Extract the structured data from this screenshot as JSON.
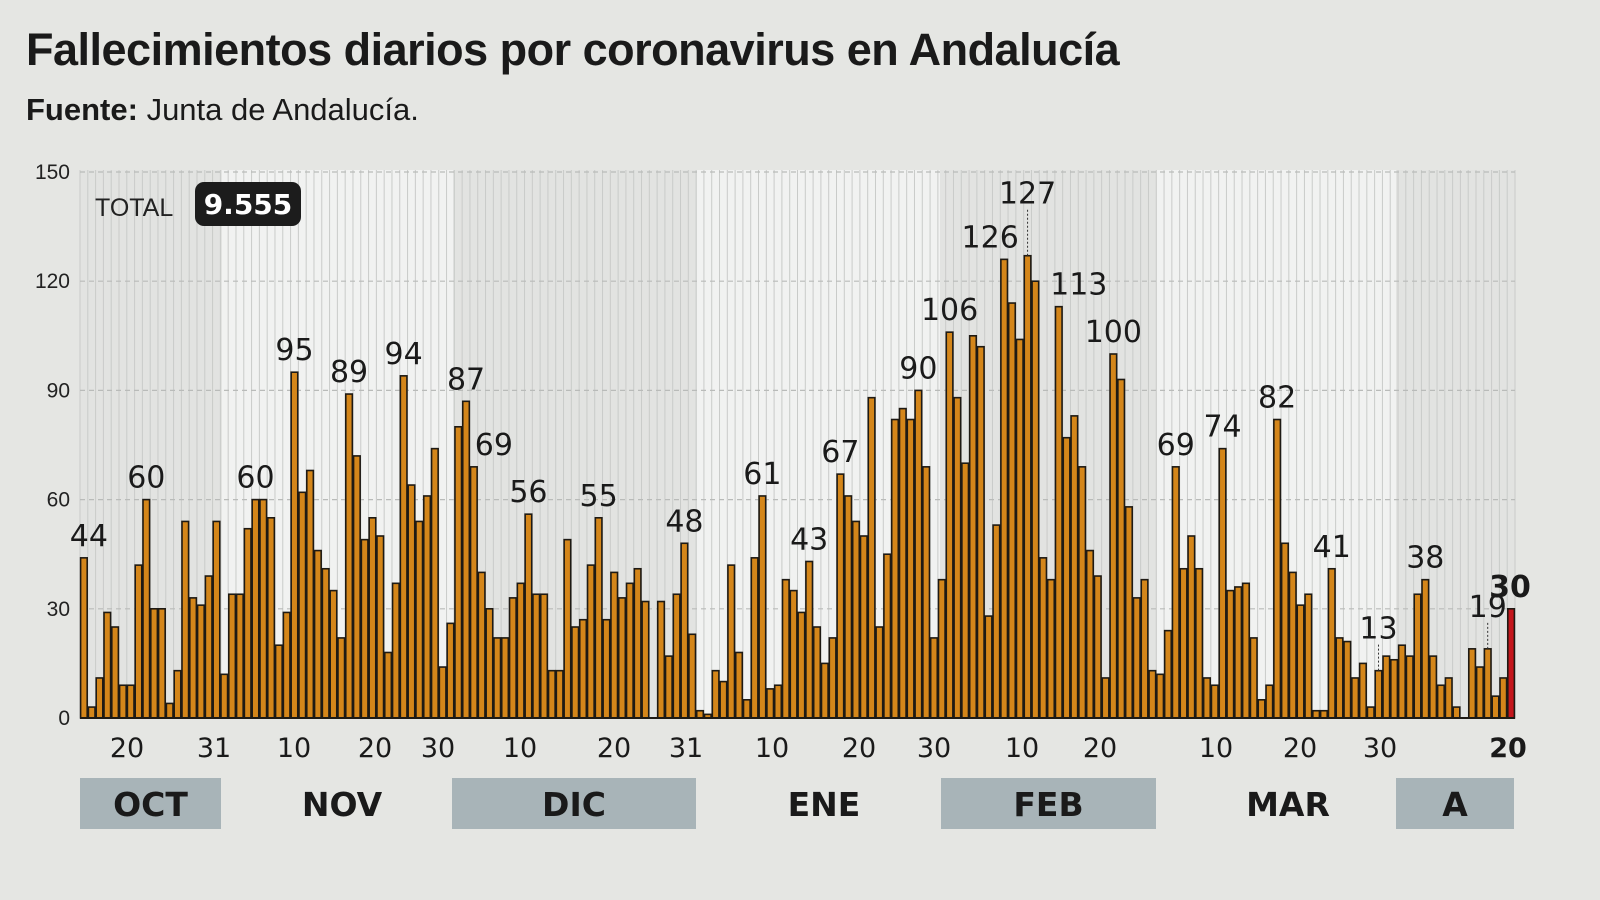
{
  "title": "Fallecimientos diarios por coronavirus en Andalucía",
  "source_label": "Fuente:",
  "source_text": "Junta de Andalucía.",
  "total_label": "TOTAL",
  "total_value": "9.555",
  "colors": {
    "bar": "#d4861a",
    "bar_outline": "#1e1a14",
    "last_bar": "#c4161c",
    "month_band": "#a8b4b8",
    "background": "#e5e6e3"
  },
  "chart_data": {
    "type": "bar",
    "title": "Fallecimientos diarios por coronavirus en Andalucía",
    "ylim": [
      0,
      150
    ],
    "y_ticks": [
      "0",
      "30",
      "60",
      "90",
      "120",
      "150"
    ],
    "grid": true,
    "values": [
      44,
      3,
      11,
      29,
      25,
      9,
      9,
      42,
      60,
      30,
      30,
      4,
      13,
      54,
      33,
      31,
      39,
      54,
      12,
      34,
      34,
      52,
      60,
      60,
      55,
      20,
      29,
      95,
      62,
      68,
      46,
      41,
      35,
      22,
      89,
      72,
      49,
      55,
      50,
      18,
      37,
      94,
      64,
      54,
      61,
      74,
      14,
      26,
      80,
      87,
      69,
      40,
      30,
      22,
      22,
      33,
      37,
      56,
      34,
      34,
      13,
      13,
      49,
      25,
      27,
      42,
      55,
      27,
      40,
      33,
      37,
      41,
      32,
      0,
      32,
      17,
      34,
      48,
      23,
      2,
      1,
      13,
      10,
      42,
      18,
      5,
      44,
      61,
      8,
      9,
      38,
      35,
      29,
      43,
      25,
      15,
      22,
      67,
      61,
      54,
      50,
      88,
      25,
      45,
      82,
      85,
      82,
      90,
      69,
      22,
      38,
      106,
      88,
      70,
      105,
      102,
      28,
      53,
      126,
      114,
      104,
      127,
      120,
      44,
      38,
      113,
      77,
      83,
      69,
      46,
      39,
      11,
      100,
      93,
      58,
      33,
      38,
      13,
      12,
      24,
      69,
      41,
      50,
      41,
      11,
      9,
      74,
      35,
      36,
      37,
      22,
      5,
      9,
      82,
      48,
      40,
      31,
      34,
      2,
      2,
      41,
      22,
      21,
      11,
      15,
      3,
      13,
      17,
      16,
      20,
      17,
      34,
      38,
      17,
      9,
      11,
      3,
      0,
      19,
      14,
      19,
      6,
      11,
      30
    ],
    "x_tick_labels": [
      "20",
      "31",
      "10",
      "20",
      "30",
      "10",
      "20",
      "31",
      "10",
      "20",
      "30",
      "10",
      "20",
      "10",
      "20",
      "30",
      "20"
    ],
    "months": [
      "OCT",
      "NOV",
      "DIC",
      "ENE",
      "FEB",
      "MAR",
      "A"
    ],
    "annotations": [
      "44",
      "60",
      "60",
      "95",
      "89",
      "94",
      "87",
      "69",
      "56",
      "55",
      "48",
      "61",
      "43",
      "67",
      "90",
      "106",
      "126",
      "127",
      "113",
      "100",
      "69",
      "74",
      "82",
      "41",
      "13",
      "38",
      "19",
      "30"
    ]
  }
}
